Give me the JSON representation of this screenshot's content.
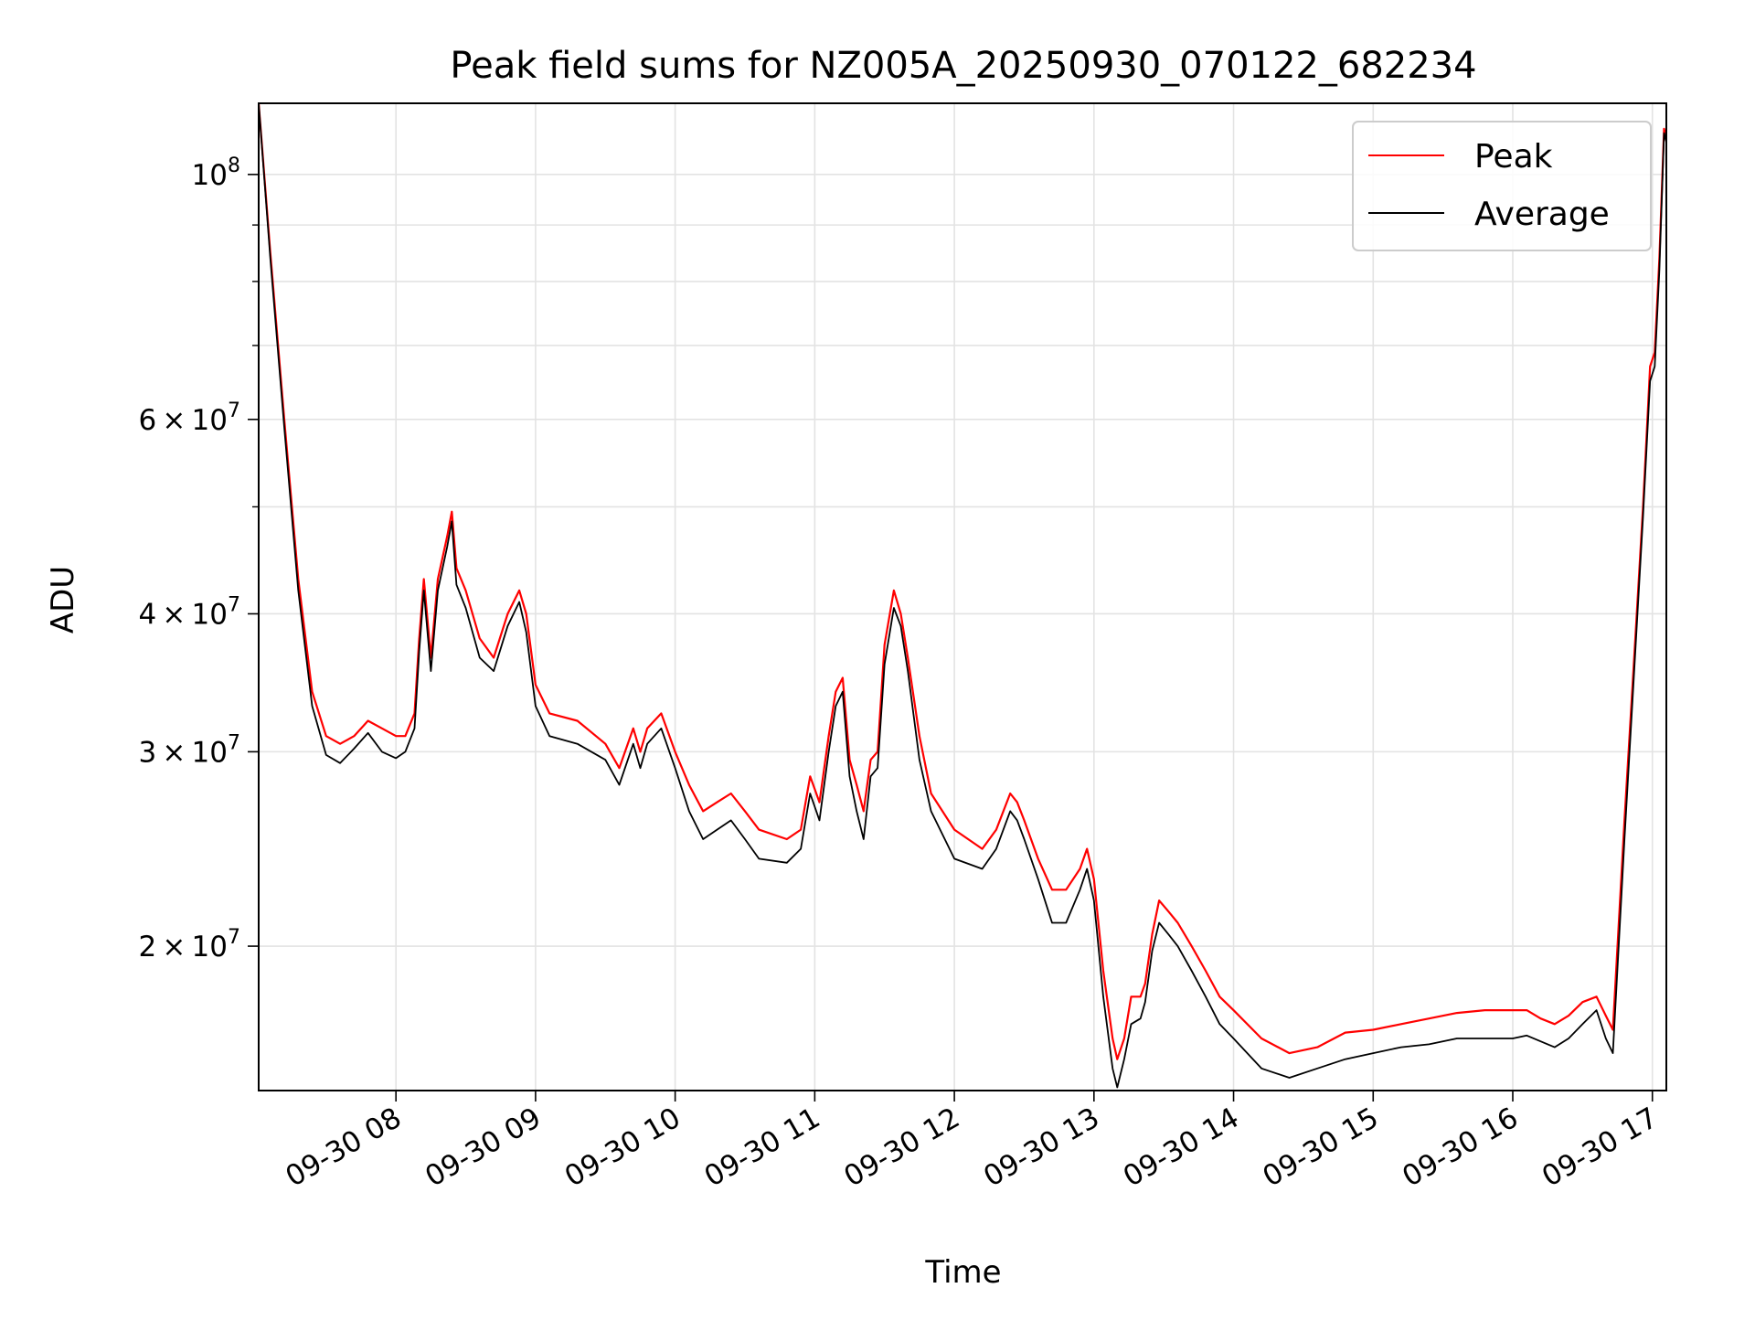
{
  "chart_data": {
    "type": "line",
    "title": "Peak field sums for NZ005A_20250930_070122_682234",
    "xlabel": "Time",
    "ylabel": "ADU",
    "yscale": "log",
    "ylim": [
      14800000,
      116000000
    ],
    "xlim": [
      "2025-09-30 07:01",
      "2025-09-30 17:06"
    ],
    "x_ticks": [
      "2025-09-30 08:00",
      "2025-09-30 09:00",
      "2025-09-30 10:00",
      "2025-09-30 11:00",
      "2025-09-30 12:00",
      "2025-09-30 13:00",
      "2025-09-30 14:00",
      "2025-09-30 15:00",
      "2025-09-30 16:00",
      "2025-09-30 17:00"
    ],
    "x_tick_labels": [
      "09-30 08",
      "09-30 09",
      "09-30 10",
      "09-30 11",
      "09-30 12",
      "09-30 13",
      "09-30 14",
      "09-30 15",
      "09-30 16",
      "09-30 17"
    ],
    "y_major_ticks": [
      {
        "value": 20000000,
        "mantissa": "2",
        "exponent": "7"
      },
      {
        "value": 30000000,
        "mantissa": "3",
        "exponent": "7"
      },
      {
        "value": 40000000,
        "mantissa": "4",
        "exponent": "7"
      },
      {
        "value": 60000000,
        "mantissa": "6",
        "exponent": "7"
      },
      {
        "value": 100000000,
        "mantissa": "",
        "exponent": "8"
      }
    ],
    "y_minor_ticks": [
      50000000,
      70000000,
      80000000,
      90000000
    ],
    "grid": true,
    "legend": "top-right",
    "series": [
      {
        "name": "Peak",
        "color": "#ff0000",
        "x": [
          "2025-09-30 07:01",
          "2025-09-30 07:06",
          "2025-09-30 07:12",
          "2025-09-30 07:18",
          "2025-09-30 07:24",
          "2025-09-30 07:30",
          "2025-09-30 07:36",
          "2025-09-30 07:42",
          "2025-09-30 07:48",
          "2025-09-30 07:54",
          "2025-09-30 08:00",
          "2025-09-30 08:04",
          "2025-09-30 08:08",
          "2025-09-30 08:10",
          "2025-09-30 08:12",
          "2025-09-30 08:15",
          "2025-09-30 08:18",
          "2025-09-30 08:22",
          "2025-09-30 08:24",
          "2025-09-30 08:26",
          "2025-09-30 08:30",
          "2025-09-30 08:36",
          "2025-09-30 08:42",
          "2025-09-30 08:48",
          "2025-09-30 08:53",
          "2025-09-30 08:56",
          "2025-09-30 09:00",
          "2025-09-30 09:06",
          "2025-09-30 09:18",
          "2025-09-30 09:30",
          "2025-09-30 09:36",
          "2025-09-30 09:42",
          "2025-09-30 09:45",
          "2025-09-30 09:48",
          "2025-09-30 09:54",
          "2025-09-30 10:00",
          "2025-09-30 10:06",
          "2025-09-30 10:12",
          "2025-09-30 10:18",
          "2025-09-30 10:24",
          "2025-09-30 10:30",
          "2025-09-30 10:36",
          "2025-09-30 10:48",
          "2025-09-30 10:54",
          "2025-09-30 10:58",
          "2025-09-30 11:02",
          "2025-09-30 11:06",
          "2025-09-30 11:09",
          "2025-09-30 11:12",
          "2025-09-30 11:15",
          "2025-09-30 11:18",
          "2025-09-30 11:21",
          "2025-09-30 11:24",
          "2025-09-30 11:27",
          "2025-09-30 11:30",
          "2025-09-30 11:34",
          "2025-09-30 11:37",
          "2025-09-30 11:40",
          "2025-09-30 11:45",
          "2025-09-30 11:50",
          "2025-09-30 12:00",
          "2025-09-30 12:12",
          "2025-09-30 12:18",
          "2025-09-30 12:24",
          "2025-09-30 12:27",
          "2025-09-30 12:30",
          "2025-09-30 12:36",
          "2025-09-30 12:42",
          "2025-09-30 12:48",
          "2025-09-30 12:54",
          "2025-09-30 12:57",
          "2025-09-30 13:00",
          "2025-09-30 13:04",
          "2025-09-30 13:08",
          "2025-09-30 13:10",
          "2025-09-30 13:13",
          "2025-09-30 13:16",
          "2025-09-30 13:20",
          "2025-09-30 13:22",
          "2025-09-30 13:25",
          "2025-09-30 13:28",
          "2025-09-30 13:32",
          "2025-09-30 13:36",
          "2025-09-30 13:42",
          "2025-09-30 13:48",
          "2025-09-30 13:54",
          "2025-09-30 14:00",
          "2025-09-30 14:12",
          "2025-09-30 14:24",
          "2025-09-30 14:36",
          "2025-09-30 14:48",
          "2025-09-30 15:00",
          "2025-09-30 15:12",
          "2025-09-30 15:24",
          "2025-09-30 15:36",
          "2025-09-30 15:48",
          "2025-09-30 16:00",
          "2025-09-30 16:06",
          "2025-09-30 16:12",
          "2025-09-30 16:18",
          "2025-09-30 16:24",
          "2025-09-30 16:30",
          "2025-09-30 16:36",
          "2025-09-30 16:40",
          "2025-09-30 16:43",
          "2025-09-30 16:48",
          "2025-09-30 16:52",
          "2025-09-30 16:56",
          "2025-09-30 16:59",
          "2025-09-30 17:01",
          "2025-09-30 17:03",
          "2025-09-30 17:05",
          "2025-09-30 17:06"
        ],
        "values": [
          116000000,
          85000000,
          60000000,
          43000000,
          34000000,
          31000000,
          30500000,
          31000000,
          32000000,
          31500000,
          31000000,
          31000000,
          32500000,
          38000000,
          43000000,
          36500000,
          43000000,
          47000000,
          49500000,
          44000000,
          42000000,
          38000000,
          36500000,
          40000000,
          42000000,
          40000000,
          34500000,
          32500000,
          32000000,
          30500000,
          29000000,
          31500000,
          30000000,
          31500000,
          32500000,
          30000000,
          28000000,
          26500000,
          27000000,
          27500000,
          26500000,
          25500000,
          25000000,
          25500000,
          28500000,
          27000000,
          31000000,
          34000000,
          35000000,
          29500000,
          28000000,
          26500000,
          29500000,
          30000000,
          37500000,
          42000000,
          40000000,
          36500000,
          31000000,
          27500000,
          25500000,
          24500000,
          25500000,
          27500000,
          27000000,
          26000000,
          24000000,
          22500000,
          22500000,
          23500000,
          24500000,
          23000000,
          19000000,
          16500000,
          15800000,
          16500000,
          18000000,
          18000000,
          18500000,
          20500000,
          22000000,
          21500000,
          21000000,
          20000000,
          19000000,
          18000000,
          17500000,
          16500000,
          16000000,
          16200000,
          16700000,
          16800000,
          17000000,
          17200000,
          17400000,
          17500000,
          17500000,
          17500000,
          17200000,
          17000000,
          17300000,
          17800000,
          18000000,
          17300000,
          16800000,
          26000000,
          36000000,
          50000000,
          67000000,
          69000000,
          84000000,
          110000000,
          108000000
        ]
      },
      {
        "name": "Average",
        "color": "#000000",
        "x": [
          "2025-09-30 07:01",
          "2025-09-30 07:06",
          "2025-09-30 07:12",
          "2025-09-30 07:18",
          "2025-09-30 07:24",
          "2025-09-30 07:30",
          "2025-09-30 07:36",
          "2025-09-30 07:42",
          "2025-09-30 07:48",
          "2025-09-30 07:54",
          "2025-09-30 08:00",
          "2025-09-30 08:04",
          "2025-09-30 08:08",
          "2025-09-30 08:10",
          "2025-09-30 08:12",
          "2025-09-30 08:15",
          "2025-09-30 08:18",
          "2025-09-30 08:22",
          "2025-09-30 08:24",
          "2025-09-30 08:26",
          "2025-09-30 08:30",
          "2025-09-30 08:36",
          "2025-09-30 08:42",
          "2025-09-30 08:48",
          "2025-09-30 08:53",
          "2025-09-30 08:56",
          "2025-09-30 09:00",
          "2025-09-30 09:06",
          "2025-09-30 09:18",
          "2025-09-30 09:30",
          "2025-09-30 09:36",
          "2025-09-30 09:42",
          "2025-09-30 09:45",
          "2025-09-30 09:48",
          "2025-09-30 09:54",
          "2025-09-30 10:00",
          "2025-09-30 10:06",
          "2025-09-30 10:12",
          "2025-09-30 10:18",
          "2025-09-30 10:24",
          "2025-09-30 10:30",
          "2025-09-30 10:36",
          "2025-09-30 10:48",
          "2025-09-30 10:54",
          "2025-09-30 10:58",
          "2025-09-30 11:02",
          "2025-09-30 11:06",
          "2025-09-30 11:09",
          "2025-09-30 11:12",
          "2025-09-30 11:15",
          "2025-09-30 11:18",
          "2025-09-30 11:21",
          "2025-09-30 11:24",
          "2025-09-30 11:27",
          "2025-09-30 11:30",
          "2025-09-30 11:34",
          "2025-09-30 11:37",
          "2025-09-30 11:40",
          "2025-09-30 11:45",
          "2025-09-30 11:50",
          "2025-09-30 12:00",
          "2025-09-30 12:12",
          "2025-09-30 12:18",
          "2025-09-30 12:24",
          "2025-09-30 12:27",
          "2025-09-30 12:30",
          "2025-09-30 12:36",
          "2025-09-30 12:42",
          "2025-09-30 12:48",
          "2025-09-30 12:54",
          "2025-09-30 12:57",
          "2025-09-30 13:00",
          "2025-09-30 13:04",
          "2025-09-30 13:08",
          "2025-09-30 13:10",
          "2025-09-30 13:13",
          "2025-09-30 13:16",
          "2025-09-30 13:20",
          "2025-09-30 13:22",
          "2025-09-30 13:25",
          "2025-09-30 13:28",
          "2025-09-30 13:32",
          "2025-09-30 13:36",
          "2025-09-30 13:42",
          "2025-09-30 13:48",
          "2025-09-30 13:54",
          "2025-09-30 14:00",
          "2025-09-30 14:12",
          "2025-09-30 14:24",
          "2025-09-30 14:36",
          "2025-09-30 14:48",
          "2025-09-30 15:00",
          "2025-09-30 15:12",
          "2025-09-30 15:24",
          "2025-09-30 15:36",
          "2025-09-30 15:48",
          "2025-09-30 16:00",
          "2025-09-30 16:06",
          "2025-09-30 16:12",
          "2025-09-30 16:18",
          "2025-09-30 16:24",
          "2025-09-30 16:30",
          "2025-09-30 16:36",
          "2025-09-30 16:40",
          "2025-09-30 16:43",
          "2025-09-30 16:48",
          "2025-09-30 16:52",
          "2025-09-30 16:56",
          "2025-09-30 16:59",
          "2025-09-30 17:01",
          "2025-09-30 17:03",
          "2025-09-30 17:05",
          "2025-09-30 17:06"
        ],
        "values": [
          116000000,
          84000000,
          59000000,
          42000000,
          33000000,
          29800000,
          29300000,
          30200000,
          31200000,
          30000000,
          29600000,
          30000000,
          31500000,
          37000000,
          42000000,
          35500000,
          42000000,
          46000000,
          48500000,
          42500000,
          40500000,
          36500000,
          35500000,
          39000000,
          41000000,
          38500000,
          33000000,
          31000000,
          30500000,
          29500000,
          28000000,
          30500000,
          29000000,
          30500000,
          31500000,
          29000000,
          26500000,
          25000000,
          25500000,
          26000000,
          25000000,
          24000000,
          23800000,
          24500000,
          27500000,
          26000000,
          30000000,
          33000000,
          34000000,
          28500000,
          26500000,
          25000000,
          28500000,
          29000000,
          36000000,
          40500000,
          39000000,
          35500000,
          29500000,
          26500000,
          24000000,
          23500000,
          24500000,
          26500000,
          26000000,
          25000000,
          23000000,
          21000000,
          21000000,
          22500000,
          23500000,
          22000000,
          18000000,
          15500000,
          14900000,
          15800000,
          17000000,
          17200000,
          17800000,
          19800000,
          21000000,
          20500000,
          20000000,
          19000000,
          18000000,
          17000000,
          16500000,
          15500000,
          15200000,
          15500000,
          15800000,
          16000000,
          16200000,
          16300000,
          16500000,
          16500000,
          16500000,
          16600000,
          16400000,
          16200000,
          16500000,
          17000000,
          17500000,
          16500000,
          16000000,
          25000000,
          35000000,
          49000000,
          65000000,
          67000000,
          82000000,
          109000000,
          107000000
        ]
      }
    ]
  }
}
